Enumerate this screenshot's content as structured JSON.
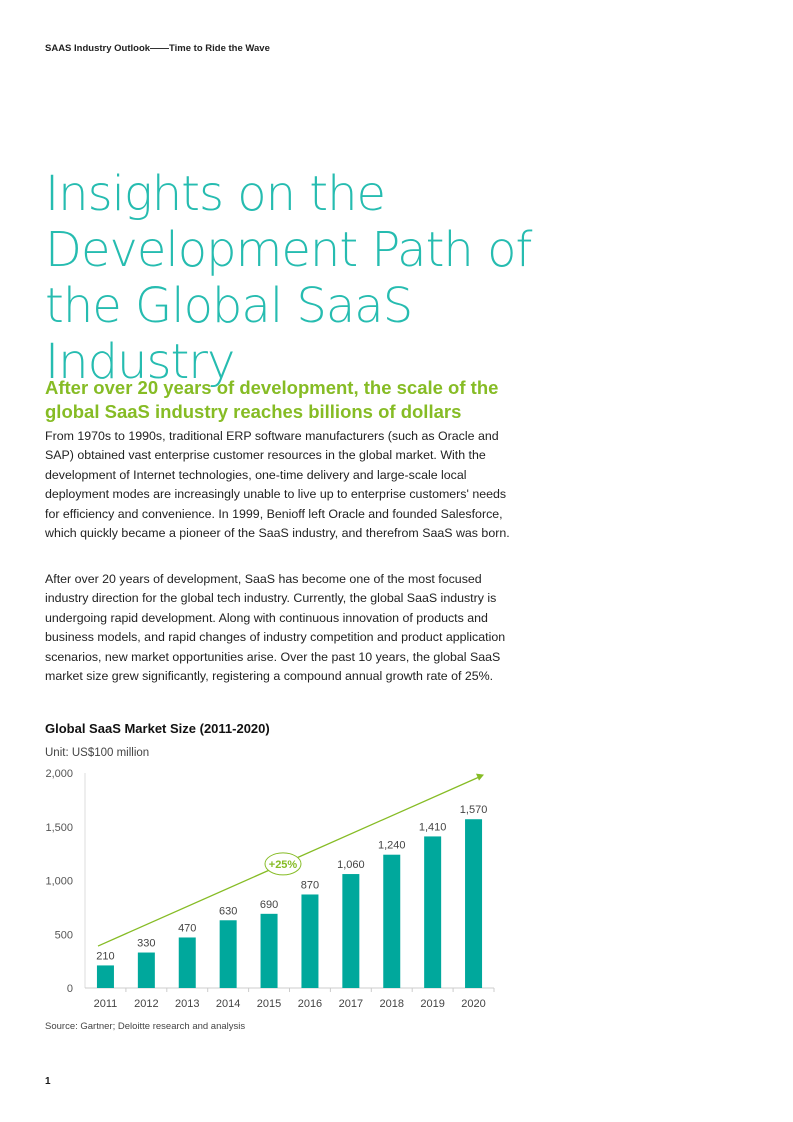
{
  "header": {
    "running_title": "SAAS Industry Outlook——Time to Ride the Wave"
  },
  "title_lines": [
    "Insights on the",
    "Development Path of",
    "the Global SaaS Industry"
  ],
  "section_heading": "After over 20 years of development, the scale of the global SaaS industry reaches billions of dollars",
  "paragraphs": [
    "From 1970s to 1990s, traditional ERP software manufacturers (such as Oracle and SAP) obtained vast enterprise customer resources in the global market. With the development of Internet technologies, one-time delivery and large-scale local deployment modes are increasingly unable to live up to enterprise customers' needs for efficiency and convenience. In 1999, Benioff left Oracle and founded Salesforce, which quickly became a pioneer of the SaaS industry, and therefrom SaaS was born.",
    "After over 20 years of development, SaaS has become one of the most focused industry direction for the global tech industry. Currently, the global SaaS industry is undergoing rapid development. Along with continuous innovation of products and business models, and rapid changes of industry competition and product application scenarios, new market opportunities arise. Over the past 10 years, the global SaaS market size grew significantly, registering a compound annual growth rate of 25%."
  ],
  "chart_data": {
    "type": "bar",
    "title": "Global SaaS Market Size (2011-2020)",
    "unit": "Unit: US$100 million",
    "categories": [
      "2011",
      "2012",
      "2013",
      "2014",
      "2015",
      "2016",
      "2017",
      "2018",
      "2019",
      "2020"
    ],
    "values": [
      210,
      330,
      470,
      630,
      690,
      870,
      1060,
      1240,
      1410,
      1570
    ],
    "value_labels": [
      "210",
      "330",
      "470",
      "630",
      "690",
      "870",
      "1,060",
      "1,240",
      "1,410",
      "1,570"
    ],
    "yticks": [
      "0",
      "500",
      "1,000",
      "1,500",
      "2,000"
    ],
    "ylim": [
      0,
      2000
    ],
    "annotation": "+25%",
    "bar_color": "#00a89c",
    "trend_color": "#86bc25",
    "grid": false
  },
  "source": "Source: Gartner; Deloitte research and analysis",
  "page_number": "1"
}
